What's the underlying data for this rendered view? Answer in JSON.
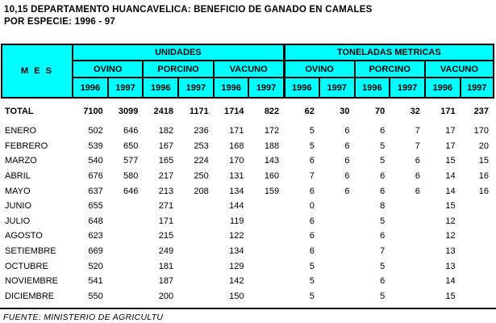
{
  "title": {
    "line1": "10,15 DEPARTAMENTO HUANCAVELICA: BENEFICIO DE GANADO EN CAMALES",
    "line2": "POR ESPECIE: 1996 - 97"
  },
  "table": {
    "mes_header": "M E S",
    "group1": "UNIDADES",
    "group2": "TONELADAS METRICAS",
    "species": [
      "OVINO",
      "PORCINO",
      "VACUNO"
    ],
    "years": [
      "1996",
      "1997"
    ],
    "rows": [
      {
        "mes": "TOTAL",
        "bold": true,
        "values": [
          "7100",
          "3099",
          "2418",
          "1171",
          "1714",
          "822",
          "62",
          "30",
          "70",
          "32",
          "171",
          "237"
        ]
      },
      {
        "mes": "ENERO",
        "bold": false,
        "values": [
          "502",
          "646",
          "182",
          "236",
          "171",
          "172",
          "5",
          "6",
          "6",
          "7",
          "17",
          "170"
        ]
      },
      {
        "mes": "FEBRERO",
        "bold": false,
        "values": [
          "539",
          "650",
          "167",
          "253",
          "168",
          "188",
          "5",
          "6",
          "5",
          "7",
          "17",
          "20"
        ]
      },
      {
        "mes": "MARZO",
        "bold": false,
        "values": [
          "540",
          "577",
          "165",
          "224",
          "170",
          "143",
          "6",
          "6",
          "5",
          "6",
          "15",
          "15"
        ]
      },
      {
        "mes": "ABRIL",
        "bold": false,
        "values": [
          "676",
          "580",
          "217",
          "250",
          "131",
          "160",
          "7",
          "6",
          "6",
          "6",
          "14",
          "16"
        ]
      },
      {
        "mes": "MAYO",
        "bold": false,
        "values": [
          "637",
          "646",
          "213",
          "208",
          "134",
          "159",
          "6",
          "6",
          "6",
          "6",
          "14",
          "16"
        ]
      },
      {
        "mes": "JUNIO",
        "bold": false,
        "values": [
          "655",
          "",
          "271",
          "",
          "144",
          "",
          "0",
          "",
          "8",
          "",
          "15",
          ""
        ]
      },
      {
        "mes": "JULIO",
        "bold": false,
        "values": [
          "648",
          "",
          "171",
          "",
          "119",
          "",
          "6",
          "",
          "5",
          "",
          "12",
          ""
        ]
      },
      {
        "mes": "AGOSTO",
        "bold": false,
        "values": [
          "623",
          "",
          "215",
          "",
          "122",
          "",
          "6",
          "",
          "6",
          "",
          "12",
          ""
        ]
      },
      {
        "mes": "SETIEMBRE",
        "bold": false,
        "values": [
          "669",
          "",
          "249",
          "",
          "134",
          "",
          "6",
          "",
          "7",
          "",
          "13",
          ""
        ]
      },
      {
        "mes": "OCTUBRE",
        "bold": false,
        "values": [
          "520",
          "",
          "181",
          "",
          "129",
          "",
          "5",
          "",
          "5",
          "",
          "13",
          ""
        ]
      },
      {
        "mes": "NOVIEMBRE",
        "bold": false,
        "values": [
          "541",
          "",
          "187",
          "",
          "142",
          "",
          "5",
          "",
          "6",
          "",
          "14",
          ""
        ]
      },
      {
        "mes": "DICIEMBRE",
        "bold": false,
        "values": [
          "550",
          "",
          "200",
          "",
          "150",
          "",
          "5",
          "",
          "5",
          "",
          "15",
          ""
        ]
      }
    ]
  },
  "footer": "FUENTE: MINISTERIO DE AGRICULTU",
  "colors": {
    "header_bg": "#00FFFF",
    "border": "#000000",
    "text": "#000000",
    "background": "#FFFFFF"
  }
}
